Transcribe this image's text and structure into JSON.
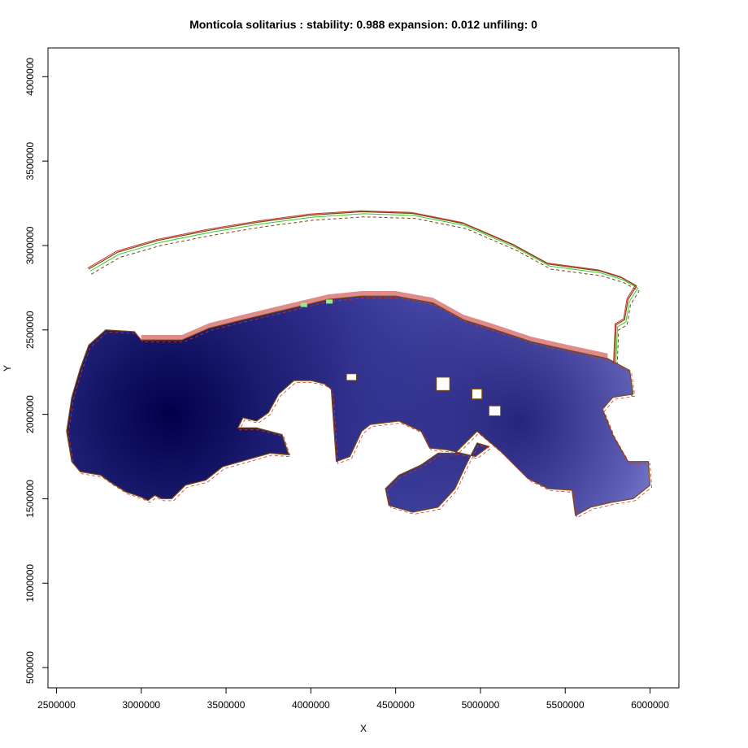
{
  "chart_data": {
    "type": "heatmap",
    "title": "Monticola solitarius : stability: 0.988 expansion: 0.012 unfiling: 0",
    "xlabel": "X",
    "ylabel": "Y",
    "xlim": [
      2450000,
      6170000
    ],
    "ylim": [
      380000,
      4170000
    ],
    "xticks": [
      2500000,
      3000000,
      3500000,
      4000000,
      4500000,
      5000000,
      5500000,
      6000000
    ],
    "yticks": [
      500000,
      1000000,
      1500000,
      2000000,
      2500000,
      3000000,
      3500000,
      4000000
    ],
    "xtick_labels": [
      "2500000",
      "3000000",
      "3500000",
      "4000000",
      "4500000",
      "5000000",
      "5500000",
      "6000000"
    ],
    "ytick_labels": [
      "500000",
      "1000000",
      "1500000",
      "2000000",
      "2500000",
      "3000000",
      "3500000",
      "4000000"
    ],
    "grid": false,
    "legend": "none",
    "colors": {
      "density_low": "#9b9bea",
      "density_high": "#00004a",
      "expansion": "#e08a8a",
      "unfilling": "#90ee90",
      "contour_native": "#7a4a0a",
      "contour_invasive_red": "#cc3333",
      "contour_invasive_green": "#33cc33"
    },
    "density_peak": [
      3200000,
      2000000
    ],
    "regions": {
      "main_body": [
        [
          2590000,
          2100000
        ],
        [
          2640000,
          2270000
        ],
        [
          2690000,
          2410000
        ],
        [
          2790000,
          2500000
        ],
        [
          2960000,
          2490000
        ],
        [
          3000000,
          2440000
        ],
        [
          3240000,
          2440000
        ],
        [
          3400000,
          2510000
        ],
        [
          3600000,
          2560000
        ],
        [
          3850000,
          2620000
        ],
        [
          4100000,
          2680000
        ],
        [
          4300000,
          2700000
        ],
        [
          4500000,
          2700000
        ],
        [
          4720000,
          2660000
        ],
        [
          4900000,
          2560000
        ],
        [
          5060000,
          2510000
        ],
        [
          5300000,
          2430000
        ],
        [
          5520000,
          2380000
        ],
        [
          5750000,
          2330000
        ],
        [
          5880000,
          2260000
        ],
        [
          5900000,
          2120000
        ],
        [
          5780000,
          2100000
        ],
        [
          5720000,
          2030000
        ],
        [
          5780000,
          1880000
        ],
        [
          5870000,
          1720000
        ],
        [
          5990000,
          1720000
        ],
        [
          6000000,
          1580000
        ],
        [
          5900000,
          1500000
        ],
        [
          5780000,
          1480000
        ],
        [
          5650000,
          1450000
        ],
        [
          5560000,
          1400000
        ],
        [
          5540000,
          1550000
        ],
        [
          5400000,
          1560000
        ],
        [
          5280000,
          1620000
        ],
        [
          5120000,
          1780000
        ],
        [
          4980000,
          1900000
        ],
        [
          4850000,
          1770000
        ],
        [
          4750000,
          1770000
        ],
        [
          4650000,
          1700000
        ],
        [
          4520000,
          1640000
        ],
        [
          4440000,
          1560000
        ],
        [
          4460000,
          1460000
        ],
        [
          4600000,
          1420000
        ],
        [
          4750000,
          1450000
        ],
        [
          4850000,
          1560000
        ],
        [
          4910000,
          1690000
        ],
        [
          4980000,
          1830000
        ],
        [
          5050000,
          1810000
        ],
        [
          4970000,
          1750000
        ],
        [
          4800000,
          1790000
        ],
        [
          4700000,
          1800000
        ],
        [
          4650000,
          1900000
        ],
        [
          4520000,
          1960000
        ],
        [
          4350000,
          1940000
        ],
        [
          4300000,
          1900000
        ],
        [
          4230000,
          1750000
        ],
        [
          4150000,
          1720000
        ],
        [
          4120000,
          2150000
        ],
        [
          4080000,
          2180000
        ],
        [
          4000000,
          2200000
        ],
        [
          3900000,
          2200000
        ],
        [
          3810000,
          2120000
        ],
        [
          3750000,
          2010000
        ],
        [
          3680000,
          1960000
        ],
        [
          3600000,
          1980000
        ],
        [
          3570000,
          1920000
        ],
        [
          3680000,
          1920000
        ],
        [
          3830000,
          1880000
        ],
        [
          3870000,
          1760000
        ],
        [
          3760000,
          1770000
        ],
        [
          3620000,
          1730000
        ],
        [
          3480000,
          1690000
        ],
        [
          3380000,
          1610000
        ],
        [
          3260000,
          1580000
        ],
        [
          3180000,
          1500000
        ],
        [
          3120000,
          1500000
        ],
        [
          3080000,
          1520000
        ],
        [
          3040000,
          1490000
        ],
        [
          3000000,
          1510000
        ],
        [
          2910000,
          1540000
        ],
        [
          2830000,
          1590000
        ],
        [
          2760000,
          1640000
        ],
        [
          2640000,
          1660000
        ],
        [
          2590000,
          1720000
        ],
        [
          2560000,
          1900000
        ]
      ],
      "expansion_band": [
        [
          2700000,
          2380000
        ],
        [
          2780000,
          2470000
        ],
        [
          2960000,
          2470000
        ],
        [
          2980000,
          2430000
        ],
        [
          2900000,
          2440000
        ],
        [
          2780000,
          2420000
        ]
      ],
      "outer_contour": [
        [
          2690000,
          2860000
        ],
        [
          2860000,
          2960000
        ],
        [
          3100000,
          3030000
        ],
        [
          3400000,
          3090000
        ],
        [
          3700000,
          3140000
        ],
        [
          4000000,
          3180000
        ],
        [
          4300000,
          3200000
        ],
        [
          4600000,
          3190000
        ],
        [
          4900000,
          3130000
        ],
        [
          5200000,
          3000000
        ],
        [
          5400000,
          2890000
        ],
        [
          5700000,
          2850000
        ],
        [
          5830000,
          2810000
        ],
        [
          5920000,
          2760000
        ],
        [
          5870000,
          2680000
        ],
        [
          5850000,
          2560000
        ],
        [
          5800000,
          2530000
        ],
        [
          5790000,
          2290000
        ],
        [
          5870000,
          2250000
        ],
        [
          5880000,
          2120000
        ]
      ]
    }
  }
}
